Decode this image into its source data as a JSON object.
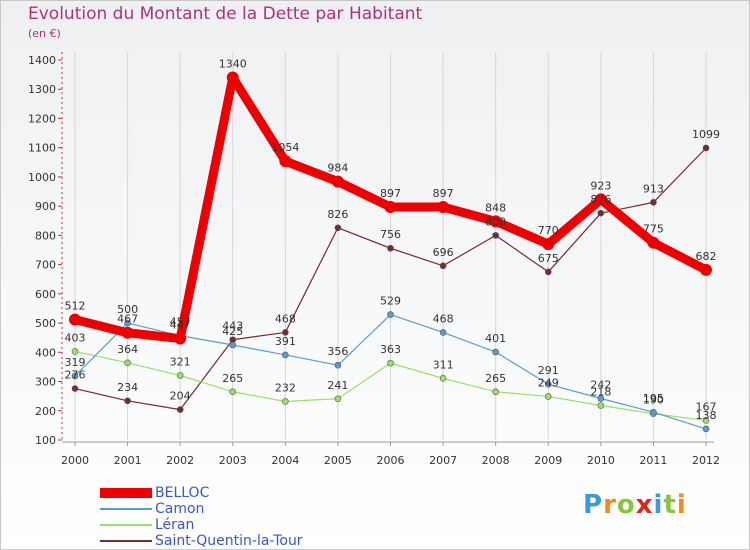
{
  "title": "Evolution du Montant de la Dette par Habitant",
  "subtitle": "(en €)",
  "logo_text": "Proxiti",
  "chart_data": {
    "type": "line",
    "title": "Evolution du Montant de la Dette par Habitant",
    "ylabel": "(en €)",
    "xlabel": "",
    "ylim": [
      100,
      1400
    ],
    "yticks": [
      "100",
      "200",
      "300",
      "400",
      "500",
      "600",
      "700",
      "800",
      "900",
      "1000",
      "1100",
      "1200",
      "1300",
      "1400"
    ],
    "categories": [
      "2000",
      "2001",
      "2002",
      "2003",
      "2004",
      "2005",
      "2006",
      "2007",
      "2008",
      "2009",
      "2010",
      "2011",
      "2012"
    ],
    "grid": "vertical",
    "legend_position": "bottom-left",
    "series": [
      {
        "name": "BELLOC",
        "color": "#ee0000",
        "width": 9,
        "values": [
          512,
          467,
          447,
          1340,
          1054,
          984,
          897,
          897,
          848,
          770,
          923,
          775,
          682
        ],
        "labels": [
          "512",
          "467",
          "447",
          "1340",
          "1054",
          "984",
          "897",
          "897",
          "848",
          "770",
          "923",
          "775",
          "682"
        ]
      },
      {
        "name": "Camon",
        "color": "#5b9bd5",
        "width": 1.2,
        "values": [
          319,
          500,
          457,
          425,
          391,
          356,
          529,
          468,
          401,
          291,
          242,
          195,
          138
        ],
        "labels": [
          "319",
          "500",
          "457",
          "425",
          "391",
          "356",
          "529",
          "468",
          "401",
          "291",
          "242",
          "195",
          "138"
        ]
      },
      {
        "name": "Léran",
        "color": "#99e066",
        "width": 1.2,
        "values": [
          403,
          364,
          321,
          265,
          232,
          241,
          363,
          311,
          265,
          249,
          218,
          190,
          167
        ],
        "labels": [
          "403",
          "364",
          "321",
          "265",
          "232",
          "241",
          "363",
          "311",
          "265",
          "249",
          "218",
          "190",
          "167"
        ]
      },
      {
        "name": "Saint-Quentin-la-Tour",
        "color": "#7a2a2a",
        "width": 1.2,
        "values": [
          276,
          234,
          204,
          443,
          468,
          826,
          756,
          696,
          800,
          675,
          876,
          913,
          1099
        ],
        "labels": [
          "276",
          "234",
          "204",
          "443",
          "468",
          "826",
          "756",
          "696",
          "800",
          "675",
          "876",
          "913",
          "1099"
        ]
      }
    ]
  }
}
